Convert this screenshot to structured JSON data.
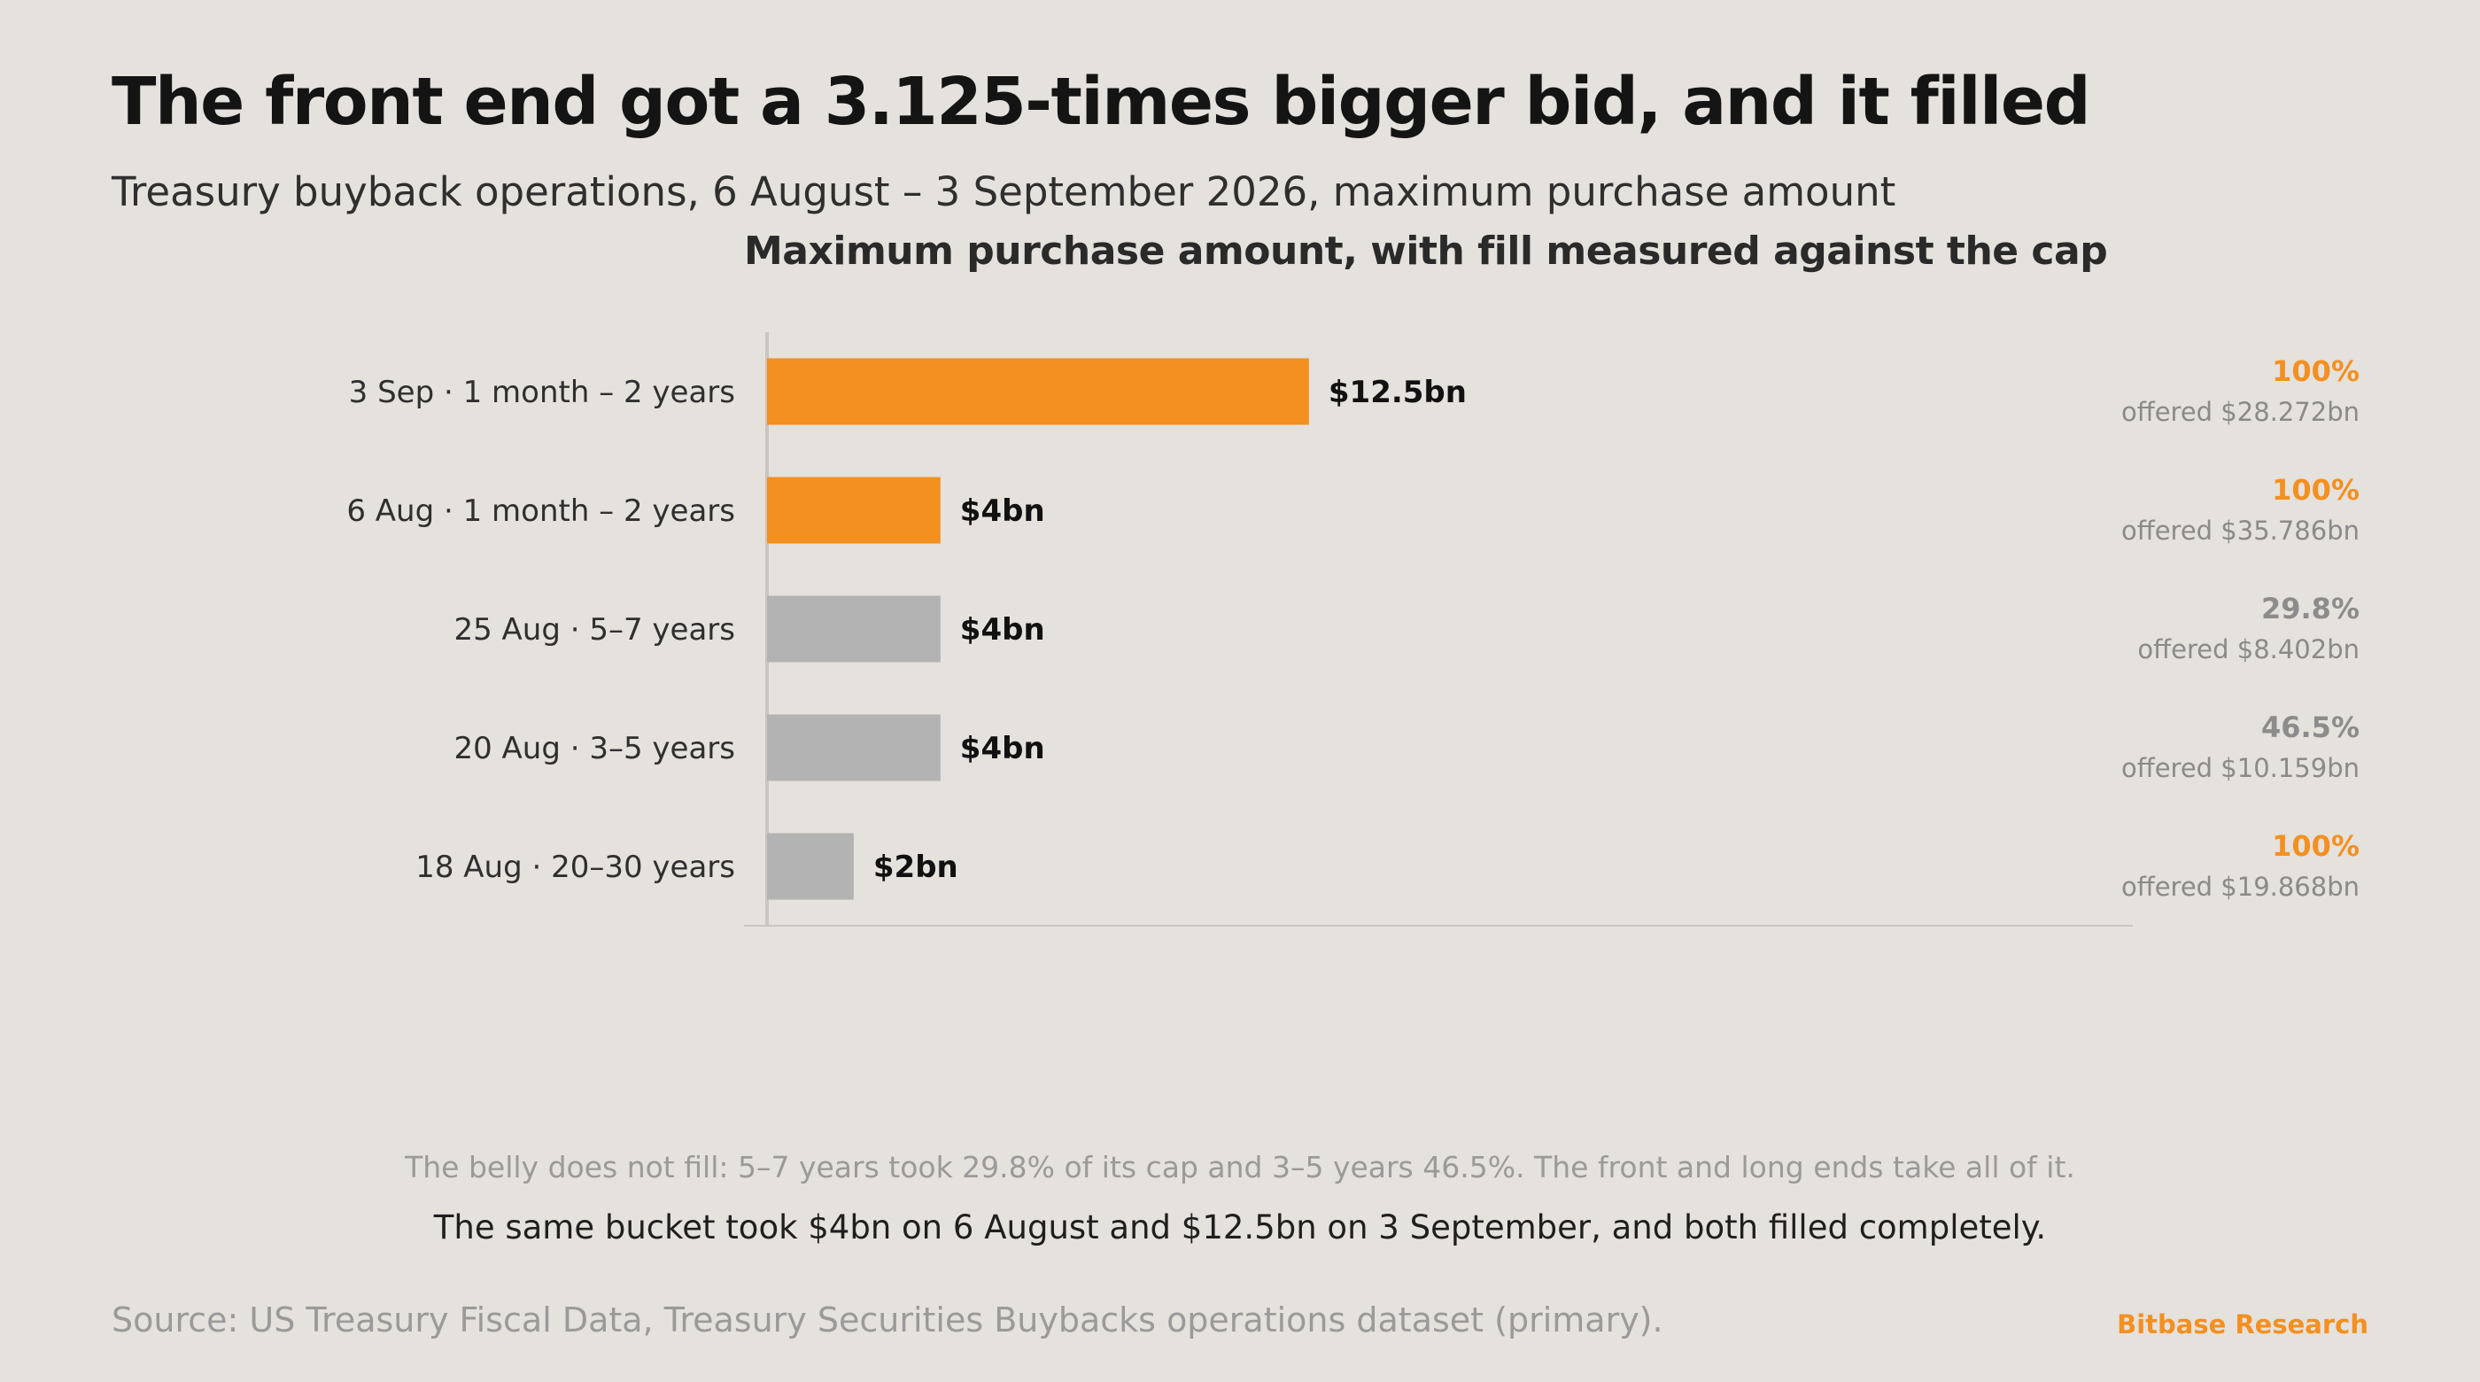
{
  "header": {
    "title": "The front end got a 3.125-times bigger bid, and it filled",
    "subtitle": "Treasury buyback operations, 6 August – 3 September 2026, maximum purchase amount"
  },
  "chart_data": {
    "type": "bar",
    "orientation": "horizontal",
    "title": "Maximum purchase amount, with fill measured against the cap",
    "categories": [
      "3 Sep · 1 month – 2 years",
      "6 Aug · 1 month – 2 years",
      "25 Aug · 5–7 years",
      "20 Aug · 3–5 years",
      "18 Aug · 20–30 years"
    ],
    "values": [
      12.5,
      4,
      4,
      4,
      2
    ],
    "value_labels": [
      "$12.5bn",
      "$4bn",
      "$4bn",
      "$4bn",
      "$2bn"
    ],
    "fill_labels": [
      "100%",
      "100%",
      "29.8%",
      "46.5%",
      "100%"
    ],
    "offered_labels": [
      "offered $28.272bn",
      "offered $35.786bn",
      "offered $8.402bn",
      "offered $10.159bn",
      "offered $19.868bn"
    ],
    "highlight": [
      true,
      true,
      false,
      false,
      false
    ],
    "fill_full": [
      true,
      true,
      false,
      false,
      true
    ],
    "xlim": [
      0,
      31.5
    ],
    "grid": false,
    "colors": {
      "highlight": "#f39020",
      "base": "#b3b3b3",
      "axis": "#c9c5c0",
      "fill_full": "#f39020",
      "fill_partial": "#8c8c8c"
    }
  },
  "notes": {
    "belly": "The belly does not fill: 5–7 years took 29.8% of its cap and 3–5 years 46.5%. The front and long ends take all of it.",
    "same_bucket": "The same bucket took $4bn on 6 August and $12.5bn on 3 September, and both filled completely."
  },
  "footer": {
    "source": "Source: US Treasury Fiscal Data, Treasury Securities Buybacks operations dataset (primary).",
    "brand": "Bitbase Research"
  }
}
